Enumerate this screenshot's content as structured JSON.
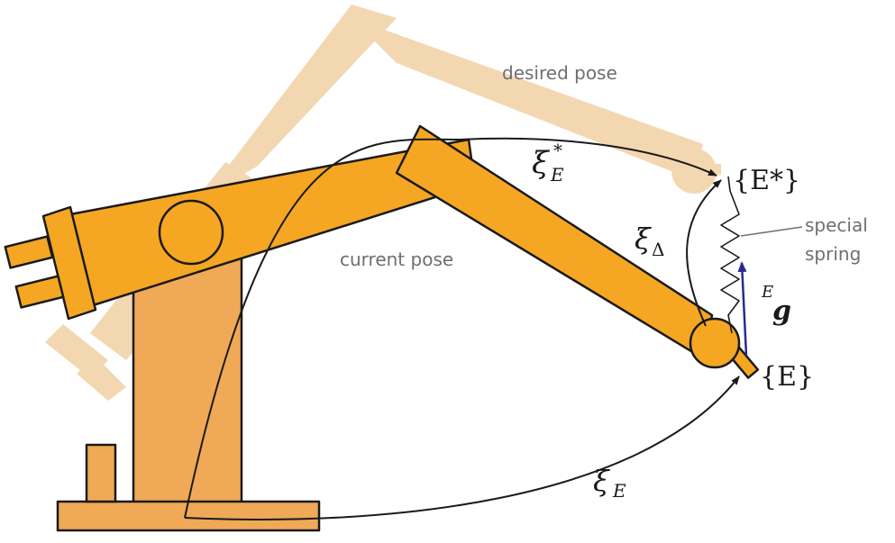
{
  "labels": {
    "desired_pose": "desired pose",
    "current_pose": "current pose",
    "special": "special",
    "spring": "spring",
    "frame_E_star": "{E*}",
    "frame_E": "{E}",
    "xi_E_star_base": "ξ",
    "xi_E_star_sup": "*",
    "xi_E_star_sub": "E",
    "xi_delta_base": "ξ",
    "xi_delta_sub": "Δ",
    "xi_E_base": "ξ",
    "xi_E_sub": "E",
    "g_pre": "E",
    "g_main": "g"
  },
  "colors": {
    "robot_orange": "#f5a623",
    "robot_outline": "#1a1a1a",
    "ghost": "#f3d7b1",
    "arrow": "#1a1a1a",
    "force_arrow": "#2b2b8c",
    "label_gray": "#6f6f6f"
  }
}
